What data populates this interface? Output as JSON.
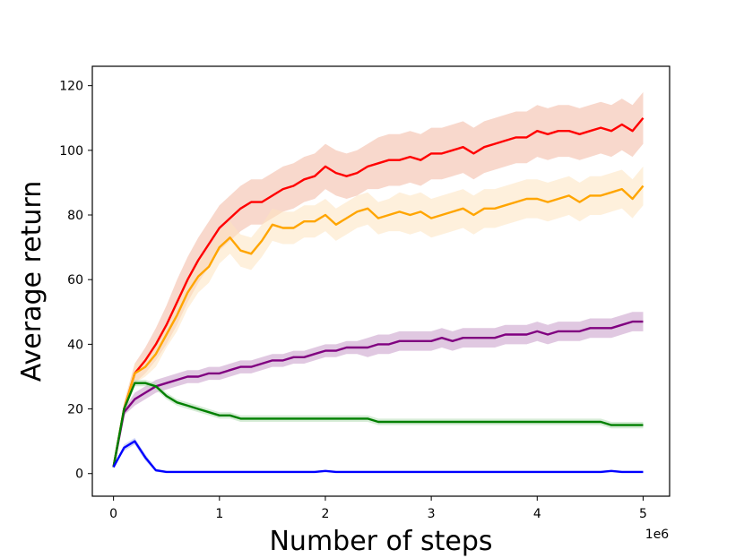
{
  "chart_data": {
    "type": "line",
    "title": "",
    "xlabel": "Number of steps",
    "ylabel": "Average return",
    "x_offset_label": "1e6",
    "xlim": [
      -0.2,
      5.25
    ],
    "ylim": [
      -7,
      126
    ],
    "xticks": [
      0,
      1,
      2,
      3,
      4,
      5
    ],
    "xtick_labels": [
      "0",
      "1",
      "2",
      "3",
      "4",
      "5"
    ],
    "yticks": [
      0,
      20,
      40,
      60,
      80,
      100,
      120
    ],
    "ytick_labels": [
      "0",
      "20",
      "40",
      "60",
      "80",
      "100",
      "120"
    ],
    "grid": false,
    "legend": "none",
    "x": [
      0,
      0.1,
      0.2,
      0.3,
      0.4,
      0.5,
      0.6,
      0.7,
      0.8,
      0.9,
      1.0,
      1.1,
      1.2,
      1.3,
      1.4,
      1.5,
      1.6,
      1.7,
      1.8,
      1.9,
      2.0,
      2.1,
      2.2,
      2.3,
      2.4,
      2.5,
      2.6,
      2.7,
      2.8,
      2.9,
      3.0,
      3.1,
      3.2,
      3.3,
      3.4,
      3.5,
      3.6,
      3.7,
      3.8,
      3.9,
      4.0,
      4.1,
      4.2,
      4.3,
      4.4,
      4.5,
      4.6,
      4.7,
      4.8,
      4.9,
      5.0
    ],
    "series": [
      {
        "color": "#ff0000",
        "band_color": "#f2b8a3",
        "values": [
          2,
          20,
          31,
          35,
          40,
          46,
          53,
          60,
          66,
          71,
          76,
          79,
          82,
          84,
          84,
          86,
          88,
          89,
          91,
          92,
          95,
          93,
          92,
          93,
          95,
          96,
          97,
          97,
          98,
          97,
          99,
          99,
          100,
          101,
          99,
          101,
          102,
          103,
          104,
          104,
          106,
          105,
          106,
          106,
          105,
          106,
          107,
          106,
          108,
          106,
          110
        ],
        "spread": [
          0,
          2,
          3,
          4,
          5,
          6,
          7,
          7,
          7,
          7,
          7,
          7,
          7,
          7,
          7,
          7,
          7,
          7,
          7,
          7,
          7,
          7,
          7,
          7,
          7,
          8,
          8,
          8,
          8,
          8,
          8,
          8,
          8,
          8,
          8,
          8,
          8,
          8,
          8,
          8,
          8,
          8,
          8,
          8,
          8,
          8,
          8,
          8,
          8,
          8,
          8
        ]
      },
      {
        "color": "#ffa500",
        "band_color": "#fde3c0",
        "values": [
          2,
          20,
          31,
          33,
          37,
          43,
          49,
          56,
          61,
          64,
          70,
          73,
          69,
          68,
          72,
          77,
          76,
          76,
          78,
          78,
          80,
          77,
          79,
          81,
          82,
          79,
          80,
          81,
          80,
          81,
          79,
          80,
          81,
          82,
          80,
          82,
          82,
          83,
          84,
          85,
          85,
          84,
          85,
          86,
          84,
          86,
          86,
          87,
          88,
          85,
          89
        ],
        "spread": [
          0,
          2,
          3,
          3,
          4,
          4,
          5,
          5,
          5,
          5,
          5,
          5,
          5,
          5,
          5,
          5,
          5,
          5,
          5,
          5,
          5,
          5,
          5,
          5,
          5,
          5,
          5,
          6,
          6,
          6,
          6,
          6,
          6,
          6,
          6,
          6,
          6,
          6,
          6,
          6,
          6,
          6,
          6,
          6,
          6,
          6,
          6,
          6,
          6,
          6,
          6
        ]
      },
      {
        "color": "#800080",
        "band_color": "#c69ac9",
        "values": [
          2,
          19,
          23,
          25,
          27,
          28,
          29,
          30,
          30,
          31,
          31,
          32,
          33,
          33,
          34,
          35,
          35,
          36,
          36,
          37,
          38,
          38,
          39,
          39,
          39,
          40,
          40,
          41,
          41,
          41,
          41,
          42,
          41,
          42,
          42,
          42,
          42,
          43,
          43,
          43,
          44,
          43,
          44,
          44,
          44,
          45,
          45,
          45,
          46,
          47,
          47
        ],
        "spread": [
          0,
          1,
          2,
          2,
          2,
          2,
          2,
          2,
          2,
          2,
          2,
          2,
          2,
          2,
          2,
          2,
          2,
          2,
          2,
          2,
          2,
          2,
          2,
          2,
          3,
          3,
          3,
          3,
          3,
          3,
          3,
          3,
          3,
          3,
          3,
          3,
          3,
          3,
          3,
          3,
          3,
          3,
          3,
          3,
          3,
          3,
          3,
          3,
          3,
          3,
          3
        ]
      },
      {
        "color": "#008000",
        "band_color": "#b5dcb5",
        "values": [
          2,
          20,
          28,
          28,
          27,
          24,
          22,
          21,
          20,
          19,
          18,
          18,
          17,
          17,
          17,
          17,
          17,
          17,
          17,
          17,
          17,
          17,
          17,
          17,
          17,
          16,
          16,
          16,
          16,
          16,
          16,
          16,
          16,
          16,
          16,
          16,
          16,
          16,
          16,
          16,
          16,
          16,
          16,
          16,
          16,
          16,
          16,
          15,
          15,
          15,
          15
        ],
        "spread": [
          0,
          1,
          1,
          1,
          1,
          1,
          1,
          1,
          1,
          1,
          1,
          1,
          1,
          1,
          1,
          1,
          1,
          1,
          1,
          1,
          1,
          1,
          1,
          1,
          1,
          1,
          1,
          1,
          1,
          1,
          1,
          1,
          1,
          1,
          1,
          1,
          1,
          1,
          1,
          1,
          1,
          1,
          1,
          1,
          1,
          1,
          1,
          1,
          1,
          1,
          1
        ]
      },
      {
        "color": "#0000ff",
        "band_color": "#aab5f2",
        "values": [
          2,
          8,
          10,
          5,
          1,
          0.5,
          0.5,
          0.5,
          0.5,
          0.5,
          0.5,
          0.5,
          0.5,
          0.5,
          0.5,
          0.5,
          0.5,
          0.5,
          0.5,
          0.5,
          0.8,
          0.5,
          0.5,
          0.5,
          0.5,
          0.5,
          0.5,
          0.5,
          0.5,
          0.5,
          0.5,
          0.5,
          0.5,
          0.5,
          0.5,
          0.5,
          0.5,
          0.5,
          0.5,
          0.5,
          0.5,
          0.5,
          0.5,
          0.5,
          0.5,
          0.5,
          0.5,
          0.8,
          0.5,
          0.5,
          0.5
        ],
        "spread": [
          0,
          1,
          1,
          1,
          0.5,
          0.3,
          0.3,
          0.3,
          0.3,
          0.3,
          0.3,
          0.3,
          0.3,
          0.3,
          0.3,
          0.3,
          0.3,
          0.3,
          0.3,
          0.3,
          0.3,
          0.3,
          0.3,
          0.3,
          0.3,
          0.3,
          0.3,
          0.3,
          0.3,
          0.3,
          0.3,
          0.3,
          0.3,
          0.3,
          0.3,
          0.3,
          0.3,
          0.3,
          0.3,
          0.3,
          0.3,
          0.3,
          0.3,
          0.3,
          0.3,
          0.3,
          0.3,
          0.3,
          0.3,
          0.3,
          0.3
        ]
      }
    ]
  }
}
